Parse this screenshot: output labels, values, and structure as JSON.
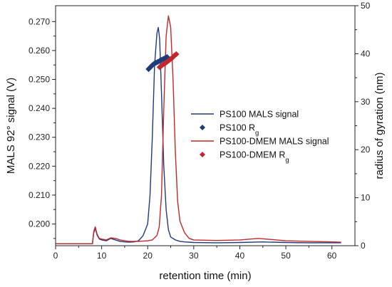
{
  "chart_data": {
    "type": "line",
    "xlabel": "retention time (min)",
    "ylabel_left": "MALS 92° signal (V)",
    "ylabel_right": "radius of gyration (nm)",
    "xlim": [
      0,
      65
    ],
    "ylim_left": [
      0.1925,
      0.2755
    ],
    "ylim_right": [
      0,
      50
    ],
    "x_ticks": [
      0,
      10,
      20,
      30,
      40,
      50,
      60
    ],
    "y_left_ticks": [
      0.2,
      0.21,
      0.22,
      0.23,
      0.24,
      0.25,
      0.26,
      0.27
    ],
    "y_right_ticks": [
      0,
      10,
      20,
      30,
      40,
      50
    ],
    "legend_position": "center-right",
    "series": [
      {
        "name": "PS100 MALS signal",
        "kind": "line",
        "axis": "left",
        "color": "#1f3b7a",
        "x": [
          0,
          8,
          8.3,
          8.6,
          9,
          9.5,
          10,
          11,
          12,
          13,
          14,
          15,
          16,
          17,
          18,
          19,
          20,
          20.5,
          21,
          21.5,
          22,
          22.3,
          22.6,
          23,
          23.5,
          24,
          24.5,
          25,
          26,
          27,
          28,
          30,
          35,
          40,
          45,
          50,
          55,
          60,
          62
        ],
        "y": [
          0.1932,
          0.1932,
          0.197,
          0.1985,
          0.1962,
          0.1948,
          0.1945,
          0.1942,
          0.195,
          0.1945,
          0.194,
          0.1938,
          0.1937,
          0.1938,
          0.1942,
          0.196,
          0.2,
          0.21,
          0.23,
          0.255,
          0.266,
          0.268,
          0.264,
          0.245,
          0.22,
          0.205,
          0.198,
          0.1955,
          0.1945,
          0.194,
          0.1938,
          0.1936,
          0.1935,
          0.1936,
          0.1938,
          0.1936,
          0.1935,
          0.1935,
          0.1935
        ]
      },
      {
        "name": "PS100-DMEM MALS signal",
        "kind": "line",
        "axis": "left",
        "color": "#c0282d",
        "x": [
          0,
          8,
          8.3,
          8.6,
          9,
          9.5,
          10,
          11,
          12,
          13,
          14,
          15,
          16,
          18,
          20,
          21,
          22,
          22.5,
          23,
          23.5,
          24,
          24.5,
          25,
          25.5,
          26,
          26.5,
          27,
          28,
          29,
          30,
          35,
          40,
          44,
          48,
          50,
          55,
          60,
          62
        ],
        "y": [
          0.1932,
          0.1932,
          0.1975,
          0.199,
          0.1965,
          0.195,
          0.1948,
          0.1945,
          0.1952,
          0.195,
          0.1945,
          0.1942,
          0.194,
          0.194,
          0.1942,
          0.1945,
          0.196,
          0.199,
          0.21,
          0.24,
          0.265,
          0.272,
          0.268,
          0.25,
          0.225,
          0.208,
          0.201,
          0.197,
          0.195,
          0.1945,
          0.1943,
          0.1945,
          0.195,
          0.1945,
          0.1942,
          0.194,
          0.1938,
          0.1937
        ]
      },
      {
        "name": "PS100 R_g",
        "kind": "scatter",
        "axis": "right",
        "color": "#1f3b7a",
        "x": [
          20.2,
          20.6,
          21.0,
          21.4,
          21.8,
          22.2,
          22.6,
          23.0,
          23.4,
          23.8,
          24.2
        ],
        "y": [
          36.8,
          37.2,
          37.6,
          37.9,
          38.1,
          38.3,
          38.5,
          38.7,
          38.9,
          39.1,
          39.3
        ]
      },
      {
        "name": "PS100-DMEM R_g",
        "kind": "scatter",
        "axis": "right",
        "color": "#c0282d",
        "x": [
          22.6,
          23.0,
          23.4,
          23.8,
          24.2,
          24.6,
          25.0,
          25.4,
          25.8,
          26.2
        ],
        "y": [
          37.2,
          37.5,
          37.8,
          38.0,
          38.3,
          38.6,
          38.9,
          39.2,
          39.6,
          39.9
        ]
      }
    ],
    "legend": [
      {
        "label": "PS100 MALS signal",
        "sub": "",
        "kind": "line",
        "color": "#1f3b7a"
      },
      {
        "label": "PS100 R",
        "sub": "g",
        "kind": "scatter",
        "color": "#1f3b7a"
      },
      {
        "label": "PS100-DMEM MALS signal",
        "sub": "",
        "kind": "line",
        "color": "#c0282d"
      },
      {
        "label": "PS100-DMEM R",
        "sub": "g",
        "kind": "scatter",
        "color": "#c0282d"
      }
    ]
  }
}
